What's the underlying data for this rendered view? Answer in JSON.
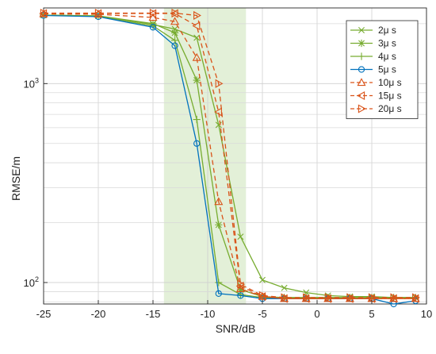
{
  "chart_data": {
    "type": "line",
    "xlabel": "SNR/dB",
    "ylabel": "RMSE/m",
    "yscale": "log",
    "xlim": [
      -25,
      10
    ],
    "ylim": [
      78,
      2400
    ],
    "x_ticks": [
      -25,
      -20,
      -15,
      -10,
      -5,
      0,
      5,
      10
    ],
    "x_tick_labels": [
      "-25",
      "-20",
      "-15",
      "-10",
      "-5",
      "0",
      "5",
      "10"
    ],
    "y_major_ticks": [
      100,
      1000
    ],
    "y_tick_labels": [
      {
        "base": "10",
        "exp": "2",
        "value": 100
      },
      {
        "base": "10",
        "exp": "3",
        "value": 1000
      }
    ],
    "grid": true,
    "shaded_region": {
      "x_from": -14,
      "x_to": -6.5,
      "color": "#e3f0d8"
    },
    "legend": {
      "position": "top-right"
    },
    "x": [
      -25,
      -20,
      -15,
      -13,
      -11,
      -9,
      -7,
      -5,
      -3,
      -1,
      1,
      3,
      5,
      7,
      9
    ],
    "series": [
      {
        "name": "2μ s",
        "color": "#77ac30",
        "marker": "x",
        "dash": "solid",
        "values": [
          2210,
          2190,
          1980,
          1880,
          1700,
          620,
          170,
          103,
          94,
          89,
          86,
          85,
          85,
          84,
          84
        ]
      },
      {
        "name": "3μ s",
        "color": "#77ac30",
        "marker": "asterisk",
        "dash": "solid",
        "values": [
          2210,
          2190,
          2000,
          1800,
          1040,
          195,
          92,
          85,
          84,
          84,
          84,
          84,
          84,
          84,
          84
        ]
      },
      {
        "name": "4μ s",
        "color": "#77ac30",
        "marker": "plus",
        "dash": "solid",
        "values": [
          2210,
          2180,
          1950,
          1650,
          660,
          100,
          87,
          84,
          84,
          84,
          84,
          84,
          84,
          84,
          84
        ]
      },
      {
        "name": "5μ s",
        "color": "#0072bd",
        "marker": "circle",
        "dash": "solid",
        "values": [
          2200,
          2170,
          1920,
          1550,
          500,
          88,
          86,
          83,
          83,
          83,
          83,
          83,
          83,
          78,
          81
        ]
      },
      {
        "name": "10μ s",
        "color": "#d95319",
        "marker": "triangle-up",
        "dash": "dashed",
        "values": [
          2240,
          2230,
          2150,
          2050,
          1350,
          255,
          93,
          85,
          83,
          83,
          83,
          83,
          83,
          83,
          83
        ]
      },
      {
        "name": "15μ s",
        "color": "#d95319",
        "marker": "triangle-left",
        "dash": "dashed",
        "values": [
          2250,
          2250,
          2250,
          2250,
          1950,
          720,
          96,
          85,
          83,
          83,
          83,
          83,
          83,
          83,
          83
        ]
      },
      {
        "name": "20μ s",
        "color": "#d95319",
        "marker": "triangle-right",
        "dash": "dashed",
        "values": [
          2260,
          2260,
          2260,
          2260,
          2200,
          1000,
          98,
          86,
          84,
          84,
          84,
          84,
          84,
          84,
          84
        ]
      }
    ]
  }
}
